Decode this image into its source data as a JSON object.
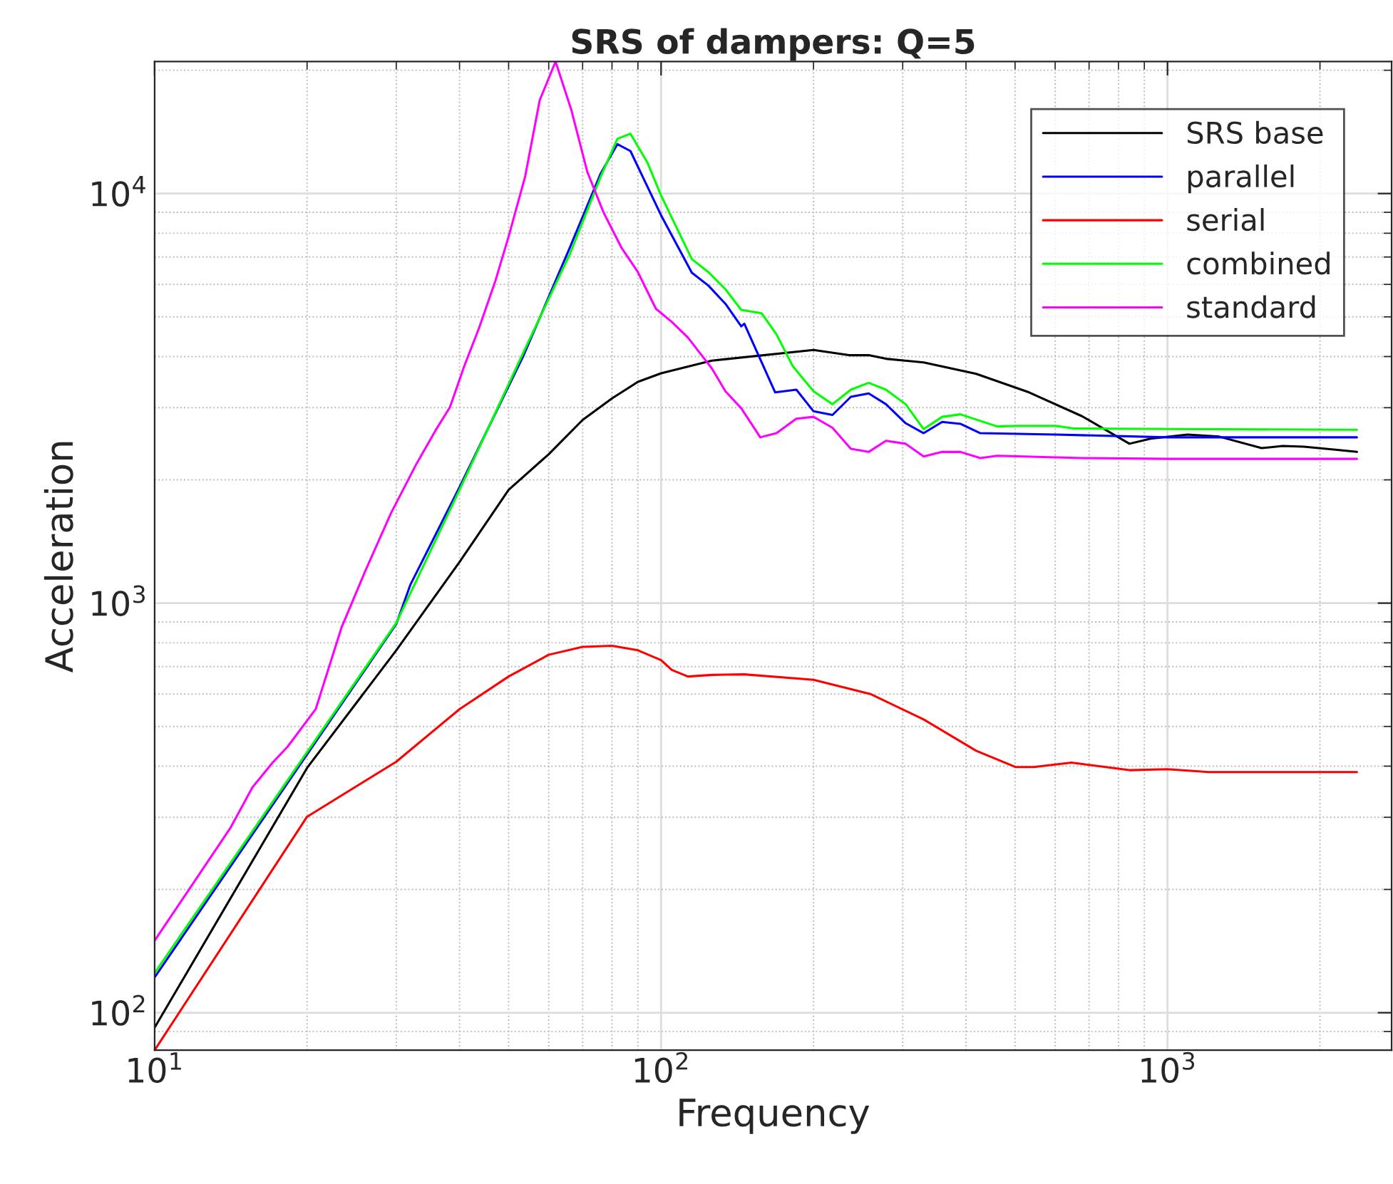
{
  "chart_data": {
    "type": "line",
    "title": "SRS of dampers: Q=5",
    "xlabel": "Frequency",
    "ylabel": "Acceleration",
    "log": "xy",
    "grid": true,
    "legend": "top right",
    "marker": "none",
    "line_style": "solid",
    "xlim": [
      10,
      2770
    ],
    "ylim": [
      81,
      21000
    ],
    "xticks": [
      {
        "value": 10,
        "label": "10$^{1}$"
      },
      {
        "value": 100,
        "label": "10$^{2}$"
      },
      {
        "value": 1000,
        "label": "10$^{3}$"
      }
    ],
    "yticks": [
      {
        "value": 100,
        "label": "10$^{2}$"
      },
      {
        "value": 1000,
        "label": "10$^{3}$"
      },
      {
        "value": 10000,
        "label": "10$^{4}$"
      }
    ],
    "series": [
      {
        "name": "SRS base",
        "color": "#000000",
        "x": [
          10,
          20,
          30,
          40,
          50,
          60,
          70,
          80,
          90,
          100,
          126,
          200,
          235,
          257,
          278,
          330,
          419,
          533,
          678,
          841,
          926,
          1095,
          1265,
          1534,
          1688,
          1858,
          2146,
          2366
        ],
        "values": [
          92,
          396,
          767,
          1260,
          1890,
          2310,
          2800,
          3160,
          3470,
          3640,
          3910,
          4150,
          4030,
          4030,
          3950,
          3870,
          3630,
          3270,
          2860,
          2450,
          2520,
          2580,
          2550,
          2390,
          2420,
          2410,
          2370,
          2340
        ]
      },
      {
        "name": "parallel",
        "color": "#0000ff",
        "x": [
          10,
          30,
          32,
          40,
          53.5,
          66,
          76,
          82,
          87,
          100,
          115,
          124,
          134,
          144,
          146,
          168,
          185,
          200,
          218,
          237,
          257,
          278,
          304,
          330,
          359,
          390,
          427,
          601,
          1000,
          2366
        ],
        "values": [
          122,
          889,
          1110,
          1920,
          4020,
          7360,
          11200,
          13200,
          12700,
          8850,
          6410,
          5960,
          5380,
          4740,
          4810,
          3270,
          3320,
          2940,
          2880,
          3190,
          3250,
          3060,
          2750,
          2600,
          2770,
          2740,
          2600,
          2580,
          2540,
          2540
        ]
      },
      {
        "name": "serial",
        "color": "#ff0000",
        "x": [
          10,
          20,
          30,
          40,
          50,
          60,
          70,
          80,
          90,
          100,
          105,
          113,
          126,
          146,
          200,
          259,
          330,
          419,
          501,
          544,
          646,
          841,
          1000,
          1206,
          2366
        ],
        "values": [
          81,
          301,
          410,
          551,
          662,
          748,
          782,
          787,
          767,
          726,
          687,
          662,
          668,
          670,
          650,
          600,
          520,
          436,
          398,
          398,
          408,
          391,
          393,
          387,
          387
        ]
      },
      {
        "name": "combined",
        "color": "#00ff00",
        "x": [
          10,
          30,
          40,
          53.5,
          66,
          76,
          82,
          87,
          94,
          100,
          115,
          124,
          134,
          144,
          158,
          169,
          182,
          200,
          218,
          237,
          257,
          278,
          304,
          330,
          359,
          390,
          461,
          508,
          601,
          654,
          1000,
          2366
        ],
        "values": [
          125,
          895,
          1890,
          4100,
          7100,
          11000,
          13600,
          14000,
          11900,
          9890,
          6920,
          6430,
          5840,
          5200,
          5100,
          4530,
          3790,
          3290,
          3060,
          3320,
          3450,
          3320,
          3060,
          2660,
          2850,
          2890,
          2700,
          2710,
          2710,
          2670,
          2660,
          2650
        ]
      },
      {
        "name": "standard",
        "color": "#ff00ff",
        "x": [
          10,
          14.1,
          15.6,
          17.1,
          18.3,
          20.8,
          23.4,
          26,
          29.3,
          32.9,
          35.8,
          38.3,
          40.9,
          43.7,
          47.1,
          50,
          53.9,
          57.6,
          61.9,
          66.5,
          71.5,
          76.9,
          83.6,
          90,
          97.7,
          105,
          113,
          126,
          134,
          144,
          157,
          169,
          185,
          200,
          218,
          237,
          257,
          278,
          304,
          330,
          359,
          390,
          427,
          461,
          678,
          1000,
          2366
        ],
        "values": [
          150,
          282,
          355,
          408,
          446,
          551,
          873,
          1190,
          1660,
          2190,
          2630,
          3010,
          3800,
          4690,
          6130,
          7850,
          11000,
          16900,
          21000,
          16000,
          11300,
          9020,
          7360,
          6430,
          5230,
          4860,
          4450,
          3740,
          3290,
          2990,
          2540,
          2600,
          2820,
          2850,
          2680,
          2380,
          2340,
          2490,
          2450,
          2280,
          2340,
          2340,
          2260,
          2290,
          2260,
          2250,
          2250
        ]
      }
    ]
  }
}
